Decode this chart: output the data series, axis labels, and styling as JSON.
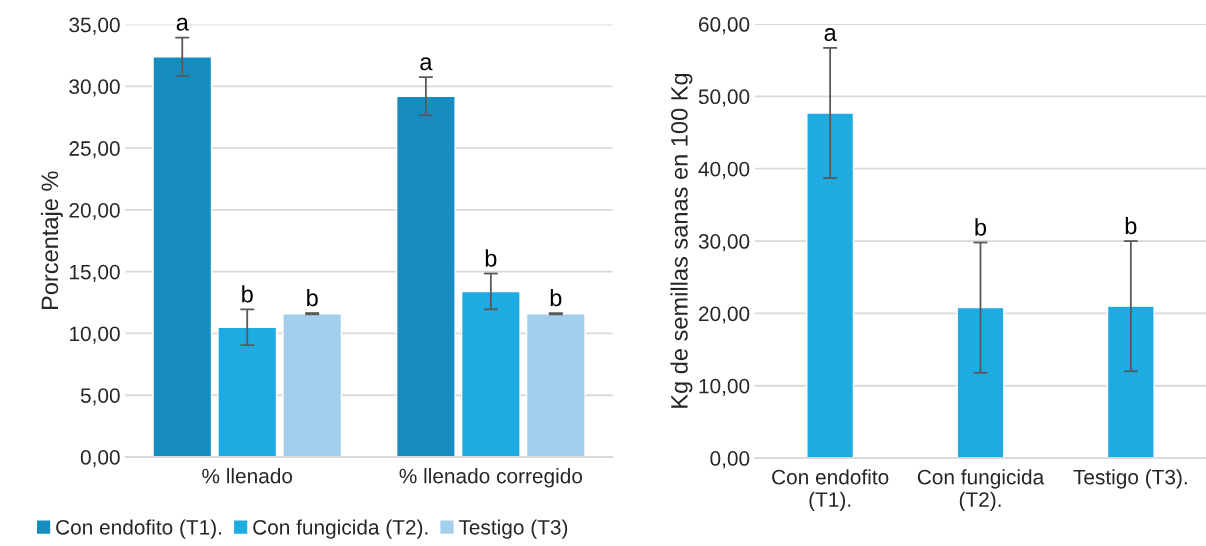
{
  "chart_data": [
    {
      "type": "bar",
      "ylabel": "Porcentaje %",
      "categories": [
        "% llenado",
        "% llenado corregido"
      ],
      "series": [
        {
          "name": "Con endofito (T1).",
          "color": "#178dbf",
          "values": [
            32.4,
            29.2
          ],
          "errors": [
            1.55,
            1.55
          ],
          "value_labels": [
            "a",
            "a"
          ]
        },
        {
          "name": "Con fungicida (T2).",
          "color": "#1eabe2",
          "values": [
            10.5,
            13.4
          ],
          "errors": [
            1.45,
            1.45
          ],
          "value_labels": [
            "b",
            "b"
          ]
        },
        {
          "name": "Testigo (T3)",
          "color": "#a3cfec",
          "values": [
            11.6,
            11.6
          ],
          "errors": [
            0.05,
            0.05
          ],
          "value_labels": [
            "b",
            "b"
          ]
        }
      ],
      "ylim": [
        0,
        35
      ],
      "yticks": [
        {
          "value": 0,
          "label": "0,00"
        },
        {
          "value": 5,
          "label": "5,00"
        },
        {
          "value": 10,
          "label": "10,00"
        },
        {
          "value": 15,
          "label": "15,00"
        },
        {
          "value": 20,
          "label": "20,00"
        },
        {
          "value": 25,
          "label": "25,00"
        },
        {
          "value": 30,
          "label": "30,00"
        },
        {
          "value": 35,
          "label": "35,00"
        }
      ],
      "grid": "y",
      "legend": "bottom"
    },
    {
      "type": "bar",
      "ylabel": "Kg de semillas sanas en 100 Kg",
      "categories": [
        "Con endofito\n(T1).",
        "Con fungicida\n(T2).",
        "Testigo (T3)."
      ],
      "series": [
        {
          "color": "#1eabe2",
          "values": [
            47.7,
            20.8,
            21.0
          ],
          "errors": [
            9.0,
            9.0,
            9.0
          ],
          "value_labels": [
            "a",
            "b",
            "b"
          ]
        }
      ],
      "ylim": [
        0,
        60
      ],
      "yticks": [
        {
          "value": 0,
          "label": "0,00"
        },
        {
          "value": 10,
          "label": "10,00"
        },
        {
          "value": 20,
          "label": "20,00"
        },
        {
          "value": 30,
          "label": "30,00"
        },
        {
          "value": 40,
          "label": "40,00"
        },
        {
          "value": 50,
          "label": "50,00"
        },
        {
          "value": 60,
          "label": "60,00"
        }
      ],
      "grid": "y"
    }
  ]
}
